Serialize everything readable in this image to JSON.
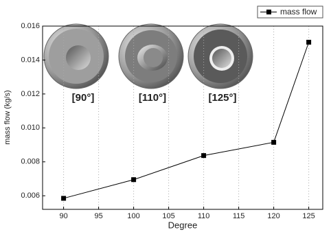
{
  "chart_data": {
    "type": "line",
    "title": null,
    "x_label": "Degree",
    "y_label": "mass flow (kg/s)",
    "x": [
      90,
      100,
      110,
      120,
      125
    ],
    "series": [
      {
        "name": "mass flow",
        "color": "#000000",
        "values": [
          0.00585,
          0.00695,
          0.00837,
          0.00915,
          0.01505
        ]
      }
    ],
    "xlim": [
      87,
      127
    ],
    "xticks": [
      90,
      95,
      100,
      105,
      110,
      115,
      120,
      125
    ],
    "ylim": [
      0.0052,
      0.016
    ],
    "yticks": [
      0.006,
      0.008,
      {
        "value": 0.01,
        "label": "0.010"
      },
      0.012,
      0.014,
      0.016
    ],
    "grid": "x",
    "legend": "top-right",
    "annotations": [
      "[90°]",
      "[110°]",
      "[125°]"
    ]
  }
}
